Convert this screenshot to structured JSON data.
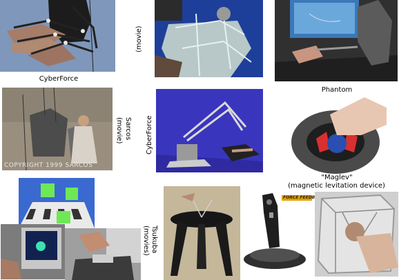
{
  "captions": {
    "cyberforce_top": "CyberForce",
    "movie_top": "(movie)",
    "phantom": "Phantom",
    "sarcos_line1": "Sarcos",
    "sarcos_line2": "(movie)",
    "cyberforce_mid": "CyberForce",
    "maglev_line1": "\"Maglev\"",
    "maglev_line2": "(magnetic levitation device)",
    "tsukuba_line1": "Tsukuba",
    "tsukuba_line2": "(movies)"
  },
  "watermark": "COPYRIGHT 1999 SARCOS",
  "logo_text": "FORCE FEEDBACK"
}
